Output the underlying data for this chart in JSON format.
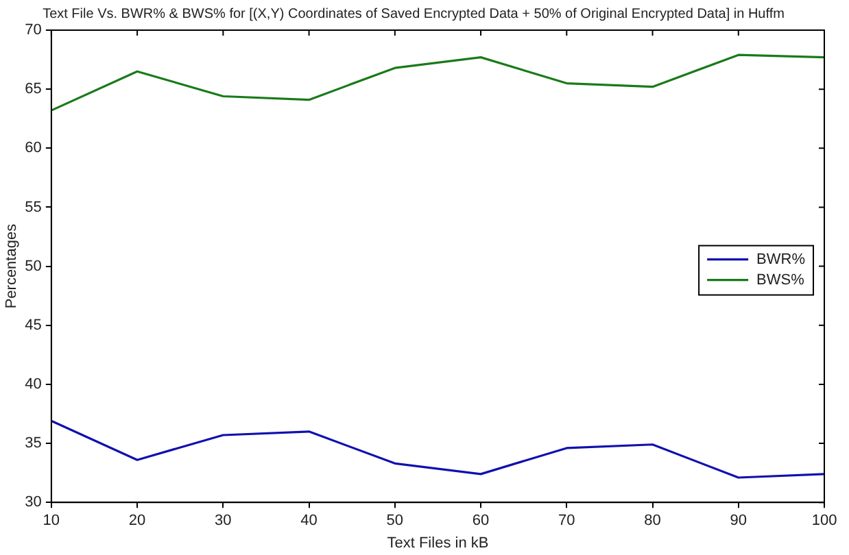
{
  "chart_data": {
    "type": "line",
    "title": "Text File Vs. BWR% & BWS% for [(X,Y) Coordinates of Saved Encrypted Data + 50% of Original Encrypted Data] in Huffm",
    "xlabel": "Text Files in kB",
    "ylabel": "Percentages",
    "x": [
      10,
      20,
      30,
      40,
      50,
      60,
      70,
      80,
      90,
      100
    ],
    "series": [
      {
        "name": "BWR%",
        "color": "#1010b0",
        "values": [
          36.9,
          33.6,
          35.7,
          36.0,
          33.3,
          32.4,
          34.6,
          34.9,
          32.1,
          32.4
        ]
      },
      {
        "name": "BWS%",
        "color": "#1a7a1a",
        "values": [
          63.2,
          66.5,
          64.4,
          64.1,
          66.8,
          67.7,
          65.5,
          65.2,
          67.9,
          67.7
        ]
      }
    ],
    "xlim": [
      10,
      100
    ],
    "xticks": [
      10,
      20,
      30,
      40,
      50,
      60,
      70,
      80,
      90,
      100
    ],
    "ylim": [
      30,
      70
    ],
    "yticks": [
      30,
      35,
      40,
      45,
      50,
      55,
      60,
      65,
      70
    ],
    "grid": false,
    "legend": "right",
    "marker": "none",
    "line_style": "solid"
  }
}
